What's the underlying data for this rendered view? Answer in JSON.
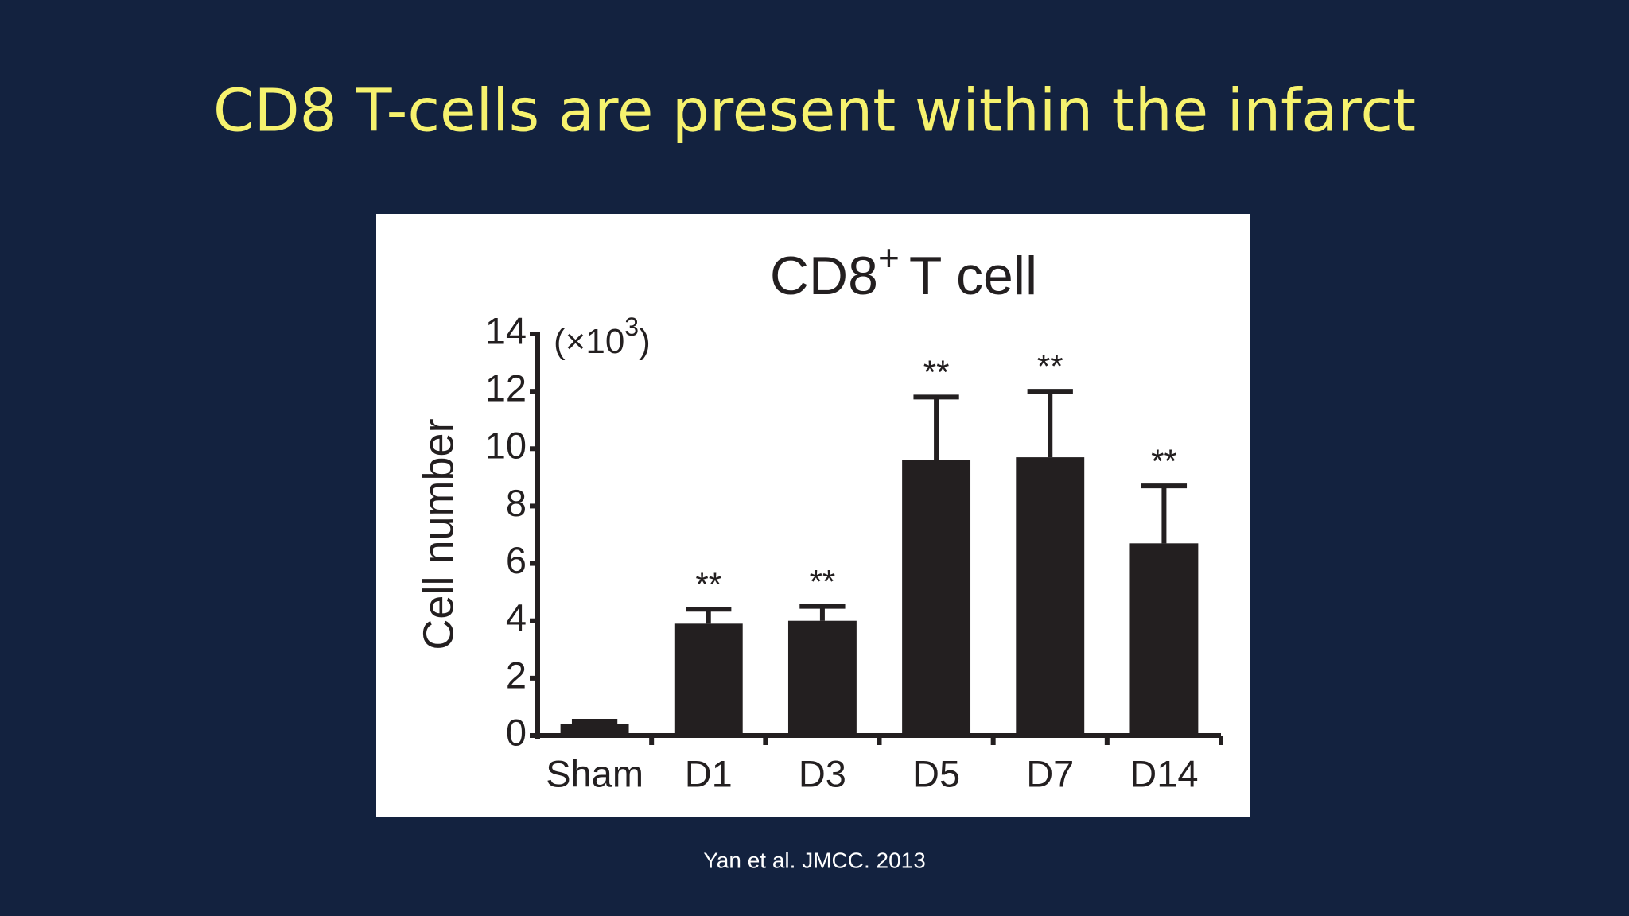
{
  "slide": {
    "title": "CD8 T-cells are present within the infarct",
    "citation": "Yan et al. JMCC. 2013"
  },
  "chart_data": {
    "type": "bar",
    "title": [
      "CD8",
      "+",
      "T cell"
    ],
    "y_label": "Cell number",
    "y_unit": [
      "(×10",
      "3",
      ")"
    ],
    "categories": [
      "Sham",
      "D1",
      "D3",
      "D5",
      "D7",
      "D14"
    ],
    "values": [
      0.4,
      3.9,
      4.0,
      9.6,
      9.7,
      6.7
    ],
    "errors": [
      0.1,
      0.5,
      0.5,
      2.2,
      2.3,
      2.0
    ],
    "significance": [
      null,
      "**",
      "**",
      "**",
      "**",
      "**"
    ],
    "color": "#231f20",
    "ylim": [
      0,
      14
    ],
    "yticks": [
      0,
      2,
      4,
      6,
      8,
      10,
      12,
      14
    ],
    "grid": false
  }
}
